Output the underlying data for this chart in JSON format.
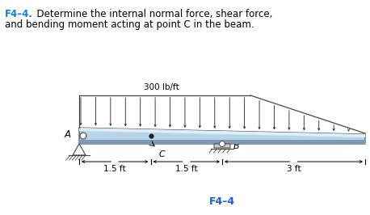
{
  "title_bold": "F4–4.",
  "title_rest": "  Determine the internal normal force, shear force,",
  "title_line2": "and bending moment acting at point C in the beam.",
  "label_300": "300 lb/ft",
  "label_C": "C",
  "label_B": "B",
  "label_A": "A",
  "label_15a": "1.5 ft",
  "label_15b": "1.5 ft",
  "label_3ft": "3 ft",
  "caption": "F4–4",
  "bg_color": "#ffffff",
  "beam_fill": "#b8d4e8",
  "beam_top_highlight": "#ddeef8",
  "beam_bot_shadow": "#7a9ab5",
  "beam_edge": "#444444",
  "arrow_color": "#222222",
  "title_color_bold": "#1a7fd4",
  "caption_color": "#1a5fcc",
  "dim_color": "#111111"
}
